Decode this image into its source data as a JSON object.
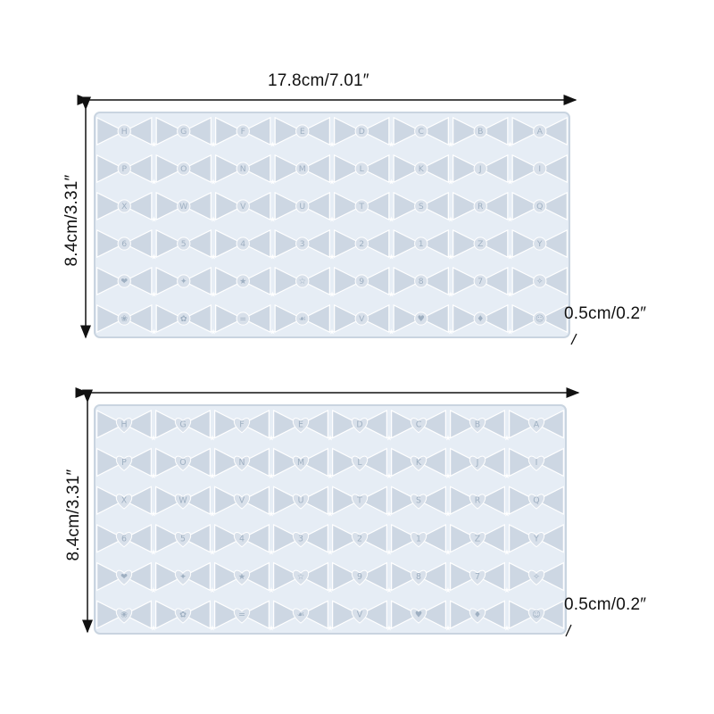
{
  "top_mold": {
    "width_label": "17.8cm/7.01″",
    "height_label": "8.4cm/3.31″",
    "thickness_label": "0.5cm/0.2″",
    "rows": [
      [
        "H",
        "G",
        "F",
        "E",
        "D",
        "C",
        "B",
        "A"
      ],
      [
        "P",
        "O",
        "N",
        "M",
        "L",
        "K",
        "J",
        "I"
      ],
      [
        "X",
        "W",
        "V",
        "U",
        "T",
        "S",
        "R",
        "Q"
      ],
      [
        "6",
        "5",
        "4",
        "3",
        "2",
        "1",
        "Z",
        "Y"
      ],
      [
        "❤",
        "✦",
        "★",
        "☆",
        "9",
        "8",
        "7",
        "✧"
      ],
      [
        "❀",
        "✿",
        "=",
        "☙",
        "V",
        "♥",
        "♦",
        "☺"
      ]
    ]
  },
  "bottom_mold": {
    "height_label": "8.4cm/3.31″",
    "thickness_label": "0.5cm/0.2″",
    "rows": [
      [
        "H",
        "G",
        "F",
        "E",
        "D",
        "C",
        "B",
        "A"
      ],
      [
        "P",
        "O",
        "N",
        "M",
        "L",
        "K",
        "J",
        "I"
      ],
      [
        "X",
        "W",
        "V",
        "U",
        "T",
        "S",
        "R",
        "Q"
      ],
      [
        "6",
        "5",
        "4",
        "3",
        "2",
        "1",
        "Z",
        "Y"
      ],
      [
        "❤",
        "✦",
        "★",
        "☆",
        "9",
        "8",
        "7",
        "✧"
      ],
      [
        "❀",
        "✿",
        "=",
        "☙",
        "V",
        "♥",
        "♦",
        "☺"
      ]
    ]
  },
  "colors": {
    "mold_fill": "#e6edf5",
    "mold_edge": "#c9d4e0",
    "cavity": "#cdd7e3",
    "arrow": "#111111"
  }
}
